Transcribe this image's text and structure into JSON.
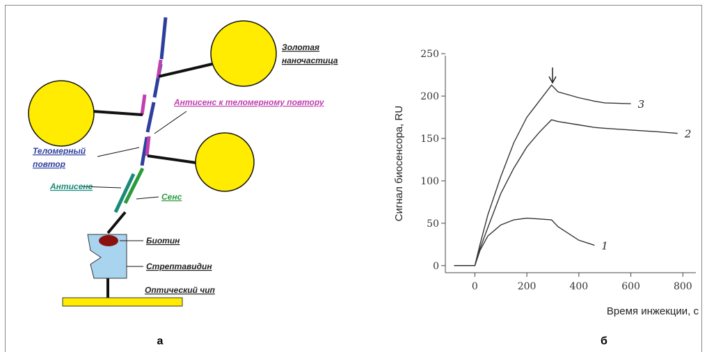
{
  "diagram": {
    "gold_label": [
      "Золотая",
      "наночастица"
    ],
    "antisense_repeat_label": "Антисенс к теломерному повтору",
    "telomere_label": [
      "Теломерный",
      "повтор"
    ],
    "antisense_label": "Антисенс",
    "sense_label": "Сенс",
    "biotin_label": "Биотин",
    "streptavidin_label": "Стрептавидин",
    "chip_label": "Оптический чип"
  },
  "panel_labels": [
    "а",
    "б"
  ],
  "chart_data": {
    "type": "line",
    "y_label": "Сигнал биосенсора, RU",
    "x_label": "Время инжекции, с",
    "x": [
      -80,
      0,
      20,
      50,
      100,
      150,
      200,
      250,
      295,
      320,
      400,
      460,
      500,
      600,
      700,
      780
    ],
    "series": [
      {
        "name": "1",
        "color": "#333333",
        "values": [
          0,
          0,
          18,
          35,
          48,
          54,
          56,
          55,
          54,
          46,
          30,
          24,
          null,
          null,
          null,
          null
        ]
      },
      {
        "name": "2",
        "color": "#333333",
        "values": [
          0,
          0,
          20,
          45,
          85,
          115,
          140,
          158,
          172,
          170,
          166,
          163,
          162,
          160,
          158,
          156
        ]
      },
      {
        "name": "3",
        "color": "#333333",
        "values": [
          0,
          0,
          25,
          60,
          105,
          145,
          175,
          195,
          213,
          205,
          198,
          194,
          192,
          191,
          null,
          null
        ]
      }
    ],
    "xlim": [
      -100,
      850
    ],
    "ylim": [
      -10,
      260
    ],
    "xticks": [
      0,
      200,
      400,
      600,
      800
    ],
    "yticks": [
      0,
      50,
      100,
      150,
      200,
      250
    ]
  }
}
